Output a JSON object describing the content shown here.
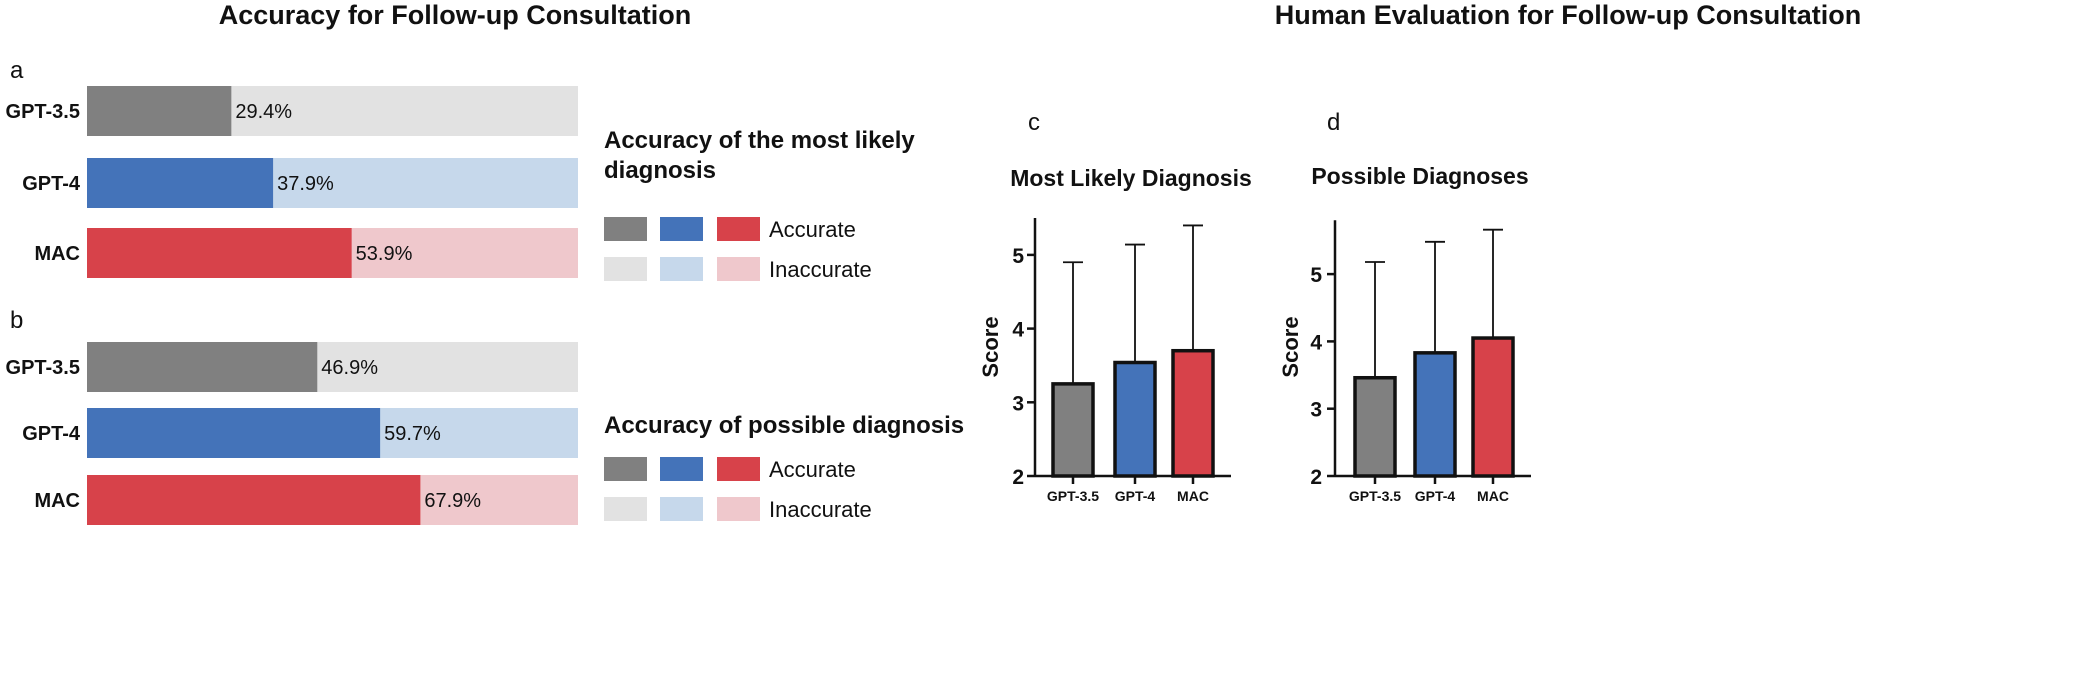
{
  "titles": {
    "left": "Accuracy for Follow-up Consultation",
    "right": "Human Evaluation for Follow-up Consultation"
  },
  "colors": {
    "GPT-3.5": {
      "accurate": "#808080",
      "inaccurate": "#e2e2e2"
    },
    "GPT-4": {
      "accurate": "#4473b9",
      "inaccurate": "#c6d8eb"
    },
    "MAC": {
      "accurate": "#d7424a",
      "inaccurate": "#efc8cc"
    }
  },
  "chart_data": [
    {
      "panel": "a",
      "type": "bar",
      "orientation": "horizontal",
      "stacked": true,
      "legend_title": "Accuracy of the most likely diagnosis",
      "legend_labels": [
        "Accurate",
        "Inaccurate"
      ],
      "categories": [
        "GPT-3.5",
        "GPT-4",
        "MAC"
      ],
      "values": [
        29.4,
        37.9,
        53.9
      ],
      "value_labels": [
        "29.4%",
        "37.9%",
        "53.9%"
      ],
      "xlim": [
        0,
        100
      ]
    },
    {
      "panel": "b",
      "type": "bar",
      "orientation": "horizontal",
      "stacked": true,
      "legend_title": "Accuracy of possible diagnosis",
      "legend_labels": [
        "Accurate",
        "Inaccurate"
      ],
      "categories": [
        "GPT-3.5",
        "GPT-4",
        "MAC"
      ],
      "values": [
        46.9,
        59.7,
        67.9
      ],
      "value_labels": [
        "46.9%",
        "59.7%",
        "67.9%"
      ],
      "xlim": [
        0,
        100
      ]
    },
    {
      "panel": "c",
      "type": "bar",
      "title": "Most Likely Diagnosis",
      "ylabel": "Score",
      "categories": [
        "GPT-3.5",
        "GPT-4",
        "MAC"
      ],
      "values": [
        3.25,
        3.54,
        3.7
      ],
      "error_upper": [
        4.9,
        5.14,
        5.4
      ],
      "ylim": [
        2,
        5.5
      ],
      "yticks": [
        "2",
        "3",
        "4",
        "5"
      ]
    },
    {
      "panel": "d",
      "type": "bar",
      "title": "Possible Diagnoses",
      "ylabel": "Score",
      "categories": [
        "GPT-3.5",
        "GPT-4",
        "MAC"
      ],
      "values": [
        3.46,
        3.83,
        4.05
      ],
      "error_upper": [
        5.18,
        5.48,
        5.66
      ],
      "ylim": [
        2,
        5.8
      ],
      "yticks": [
        "2",
        "3",
        "4",
        "5"
      ]
    }
  ]
}
